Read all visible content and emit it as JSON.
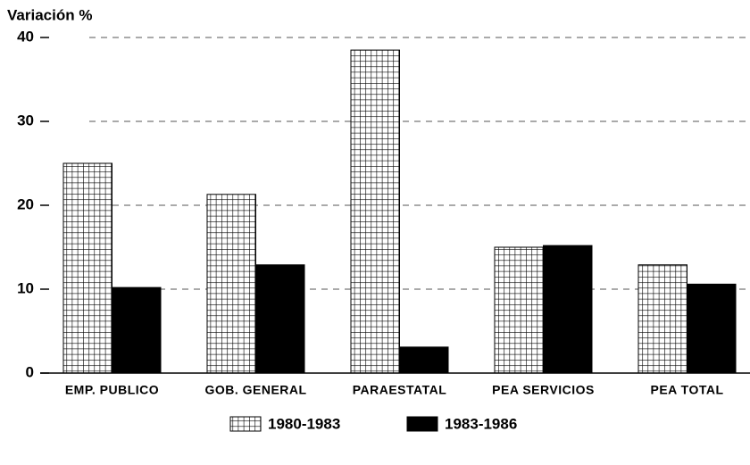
{
  "chart_data": {
    "type": "bar",
    "ylabel": "Variación %",
    "categories": [
      "EMP. PUBLICO",
      "GOB. GENERAL",
      "PARAESTATAL",
      "PEA SERVICIOS",
      "PEA TOTAL"
    ],
    "series": [
      {
        "name": "1980-1983",
        "color": "#000000",
        "pattern": "grid",
        "values": [
          25,
          21.3,
          38.5,
          15,
          12.9
        ]
      },
      {
        "name": "1983-1986",
        "color": "#000000",
        "pattern": "solid",
        "values": [
          10.2,
          12.9,
          3.1,
          15.2,
          10.6
        ]
      }
    ],
    "ylim": [
      0,
      40
    ],
    "yticks": [
      0,
      10,
      20,
      30,
      40
    ],
    "grid": true,
    "legend": "bottom"
  }
}
